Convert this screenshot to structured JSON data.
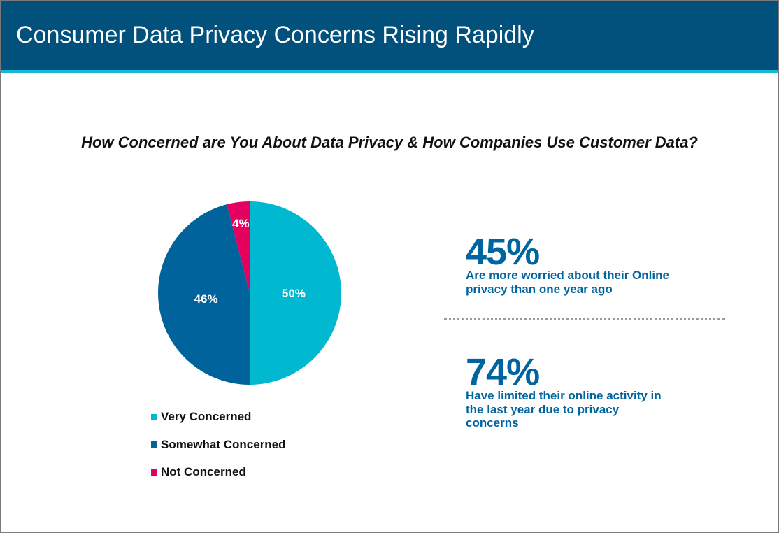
{
  "header": {
    "title": "Consumer Data Privacy Concerns Rising Rapidly"
  },
  "colors": {
    "header_bg": "#02507c",
    "accent": "#16b8d4",
    "stat_text": "#0064a0"
  },
  "chart_data": {
    "type": "pie",
    "title": "How Concerned are You About Data Privacy & How Companies Use Customer Data?",
    "slices": [
      {
        "name": "Very Concerned",
        "value": 50,
        "label": "50%",
        "color": "#00b8d0"
      },
      {
        "name": "Somewhat Concerned",
        "value": 46,
        "label": "46%",
        "color": "#00639c"
      },
      {
        "name": "Not Concerned",
        "value": 4,
        "label": "4%",
        "color": "#e3005f"
      }
    ],
    "legend_position": "bottom"
  },
  "stats": [
    {
      "value": "45%",
      "text": "Are more worried about their Online privacy than one year ago"
    },
    {
      "value": "74%",
      "text": "Have limited their online activity in the last year due to privacy concerns"
    }
  ]
}
